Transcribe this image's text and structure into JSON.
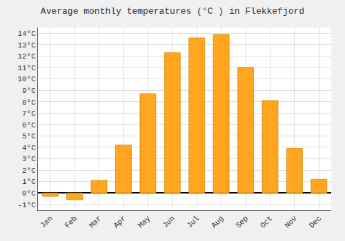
{
  "chart_data": {
    "type": "bar",
    "title": "Average monthly temperatures (°C ) in Flekkefjord",
    "categories": [
      "Jan",
      "Feb",
      "Mar",
      "Apr",
      "May",
      "Jun",
      "Jul",
      "Aug",
      "Sep",
      "Oct",
      "Nov",
      "Dec"
    ],
    "values": [
      -0.3,
      -0.6,
      1.1,
      4.2,
      8.7,
      12.3,
      13.6,
      13.9,
      11.0,
      8.1,
      3.9,
      1.2
    ],
    "color": "#FFA520",
    "ylim": [
      -1.5,
      14.5
    ],
    "yticks": [
      {
        "value": -1,
        "label": "-1°C"
      },
      {
        "value": 0,
        "label": "0°C"
      },
      {
        "value": 1,
        "label": "1°C"
      },
      {
        "value": 2,
        "label": "2°C"
      },
      {
        "value": 3,
        "label": "3°C"
      },
      {
        "value": 4,
        "label": "4°C"
      },
      {
        "value": 5,
        "label": "5°C"
      },
      {
        "value": 6,
        "label": "6°C"
      },
      {
        "value": 7,
        "label": "7°C"
      },
      {
        "value": 8,
        "label": "8°C"
      },
      {
        "value": 9,
        "label": "9°C"
      },
      {
        "value": 10,
        "label": "10°C"
      },
      {
        "value": 11,
        "label": "11°C"
      },
      {
        "value": 12,
        "label": "12°C"
      },
      {
        "value": 13,
        "label": "13°C"
      },
      {
        "value": 14,
        "label": "14°C"
      }
    ],
    "grid": true
  }
}
